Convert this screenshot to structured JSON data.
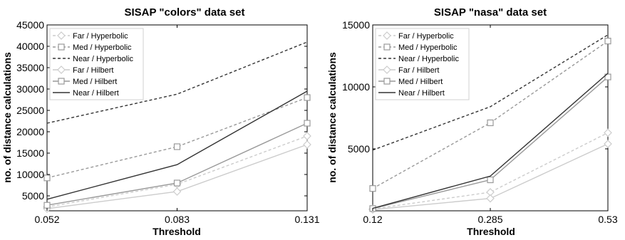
{
  "chart_data": [
    {
      "type": "line",
      "title": "SISAP \"colors\" data set",
      "xlabel": "Threshold",
      "ylabel": "no. of distance calculations",
      "categories": [
        "0.052",
        "0.083",
        "0.131"
      ],
      "y_ticks": [
        5000,
        10000,
        15000,
        20000,
        25000,
        30000,
        35000,
        40000,
        45000
      ],
      "ylim": [
        1500,
        45000
      ],
      "grid": false,
      "legend": "top-left",
      "series": [
        {
          "name": "Far / Hyperbolic",
          "values": [
            2400,
            7700,
            19000
          ],
          "color": "#cccccc",
          "dash": "4 3",
          "marker": "diamond"
        },
        {
          "name": "Med / Hyperbolic",
          "values": [
            9200,
            16500,
            28000
          ],
          "color": "#999999",
          "dash": "4 3",
          "marker": "square"
        },
        {
          "name": "Near / Hyperbolic",
          "values": [
            22000,
            28800,
            41000
          ],
          "color": "#333333",
          "dash": "4 3",
          "marker": "none"
        },
        {
          "name": "Far / Hilbert",
          "values": [
            2000,
            6000,
            17000
          ],
          "color": "#cccccc",
          "dash": "",
          "marker": "diamond"
        },
        {
          "name": "Med / Hilbert",
          "values": [
            2800,
            8000,
            22000
          ],
          "color": "#999999",
          "dash": "",
          "marker": "square"
        },
        {
          "name": "Near / Hilbert",
          "values": [
            4200,
            12300,
            29500
          ],
          "color": "#333333",
          "dash": "",
          "marker": "none"
        }
      ]
    },
    {
      "type": "line",
      "title": "SISAP \"nasa\" data set",
      "xlabel": "Threshold",
      "ylabel": "no. of distance calculations",
      "categories": [
        "0.12",
        "0.285",
        "0.53"
      ],
      "y_ticks": [
        5000,
        10000,
        15000
      ],
      "ylim": [
        0,
        15000
      ],
      "grid": false,
      "legend": "top-left",
      "series": [
        {
          "name": "Far / Hyperbolic",
          "values": [
            150,
            1500,
            6300
          ],
          "color": "#cccccc",
          "dash": "4 3",
          "marker": "diamond"
        },
        {
          "name": "Med / Hyperbolic",
          "values": [
            1800,
            7100,
            13700
          ],
          "color": "#999999",
          "dash": "4 3",
          "marker": "square"
        },
        {
          "name": "Near / Hyperbolic",
          "values": [
            4900,
            8400,
            14200
          ],
          "color": "#333333",
          "dash": "4 3",
          "marker": "none"
        },
        {
          "name": "Far / Hilbert",
          "values": [
            100,
            1000,
            5400
          ],
          "color": "#cccccc",
          "dash": "",
          "marker": "diamond"
        },
        {
          "name": "Med / Hilbert",
          "values": [
            180,
            2500,
            10800
          ],
          "color": "#999999",
          "dash": "",
          "marker": "square"
        },
        {
          "name": "Near / Hilbert",
          "values": [
            200,
            2800,
            11100
          ],
          "color": "#333333",
          "dash": "",
          "marker": "none"
        }
      ]
    }
  ]
}
